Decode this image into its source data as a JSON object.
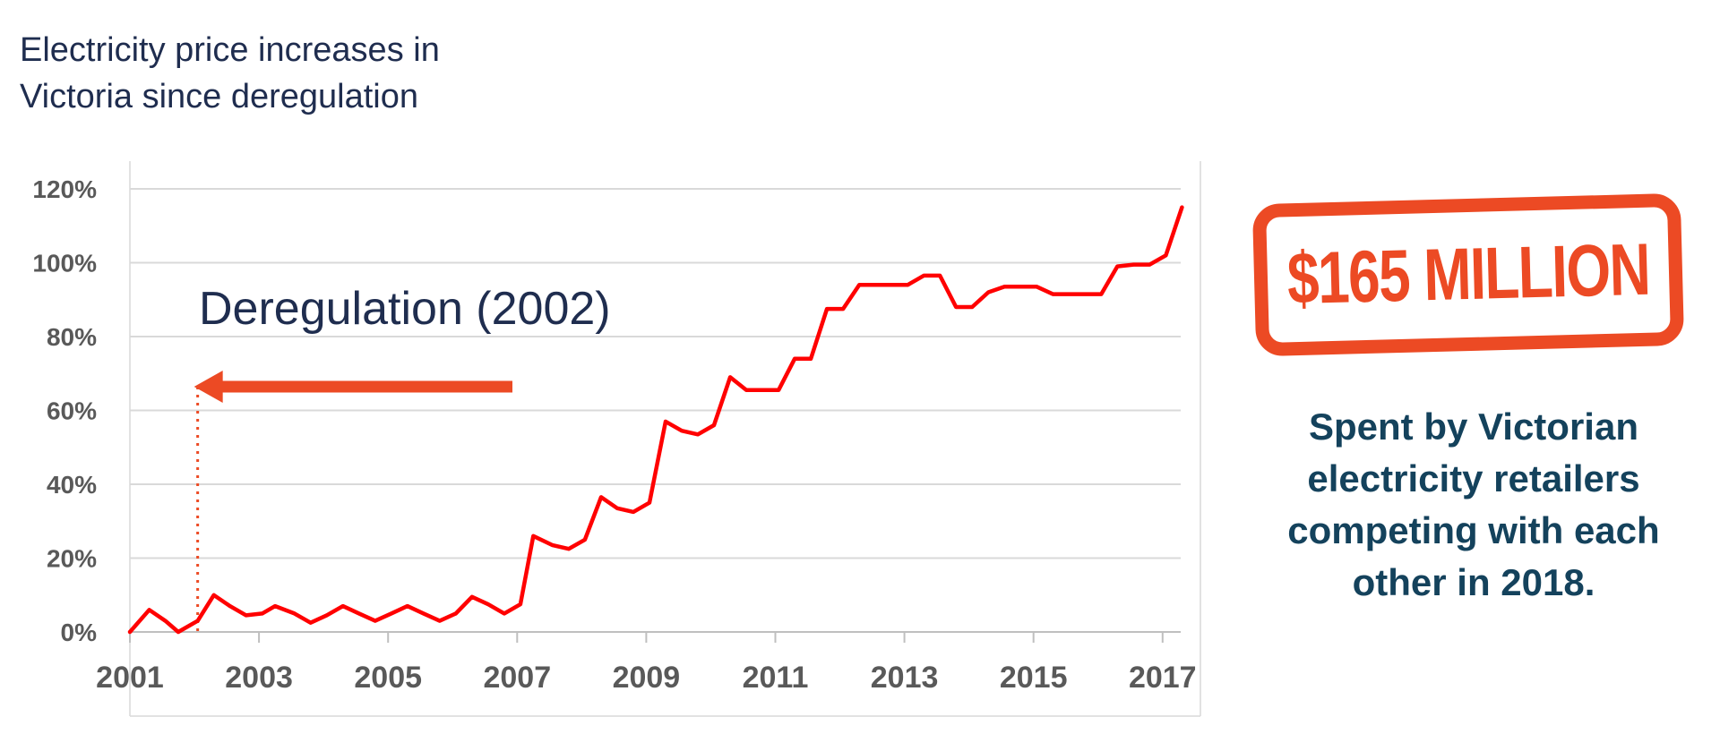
{
  "title_lines": [
    "Electricity price increases in",
    "Victoria since deregulation"
  ],
  "chart_data": {
    "type": "line",
    "title": "Electricity price increases in Victoria since deregulation",
    "xlabel": "",
    "ylabel": "",
    "xlim": [
      2001,
      2017.35
    ],
    "ylim": [
      0,
      120
    ],
    "x_ticks": [
      2001,
      2003,
      2005,
      2007,
      2009,
      2011,
      2013,
      2015,
      2017
    ],
    "y_ticks": [
      0,
      20,
      40,
      60,
      80,
      100,
      120
    ],
    "y_tick_labels": [
      "0%",
      "20%",
      "40%",
      "60%",
      "80%",
      "100%",
      "120%"
    ],
    "grid": true,
    "line_color": "#ff0000",
    "series": [
      {
        "x": [
          2001.0,
          2001.3,
          2001.55,
          2001.75,
          2002.05,
          2002.3,
          2002.55,
          2002.8,
          2003.05,
          2003.25,
          2003.55,
          2003.8,
          2004.05,
          2004.3,
          2004.55,
          2004.8,
          2005.05,
          2005.3,
          2005.55,
          2005.8,
          2006.05,
          2006.3,
          2006.55,
          2006.8,
          2007.05,
          2007.25,
          2007.55,
          2007.8,
          2008.05,
          2008.3,
          2008.55,
          2008.8,
          2009.05,
          2009.3,
          2009.55,
          2009.8,
          2010.05,
          2010.3,
          2010.55,
          2010.8,
          2011.05,
          2011.3,
          2011.55,
          2011.8,
          2012.05,
          2012.3,
          2012.55,
          2012.8,
          2013.05,
          2013.3,
          2013.55,
          2013.8,
          2014.05,
          2014.3,
          2014.55,
          2014.8,
          2015.05,
          2015.3,
          2015.55,
          2015.8,
          2016.05,
          2016.3,
          2016.55,
          2016.8,
          2017.05,
          2017.3
        ],
        "y": [
          0,
          6,
          3,
          0,
          3,
          10,
          7,
          4.5,
          5,
          7,
          5,
          2.5,
          4.5,
          7,
          5,
          3,
          5,
          7,
          5,
          3,
          5,
          9.5,
          7.5,
          5,
          7.5,
          26,
          23.5,
          22.5,
          25,
          36.5,
          33.5,
          32.5,
          35,
          57,
          54.5,
          53.5,
          56,
          69,
          65.5,
          65.5,
          65.5,
          74,
          74,
          87.5,
          87.5,
          94,
          94,
          94,
          94,
          96.5,
          96.5,
          88,
          88,
          92,
          93.5,
          93.5,
          93.5,
          91.5,
          91.5,
          91.5,
          91.5,
          99,
          99.5,
          99.5,
          102,
          115
        ]
      }
    ],
    "annotations": [
      {
        "text": "Deregulation (2002)",
        "x": 2002.05
      }
    ],
    "marker_color": "#ec4a24"
  },
  "stamp": {
    "text": "$165 MILLION",
    "color": "#ec4a24"
  },
  "note_lines": [
    "Spent by Victorian",
    "electricity retailers",
    "competing with each",
    "other in 2018."
  ]
}
